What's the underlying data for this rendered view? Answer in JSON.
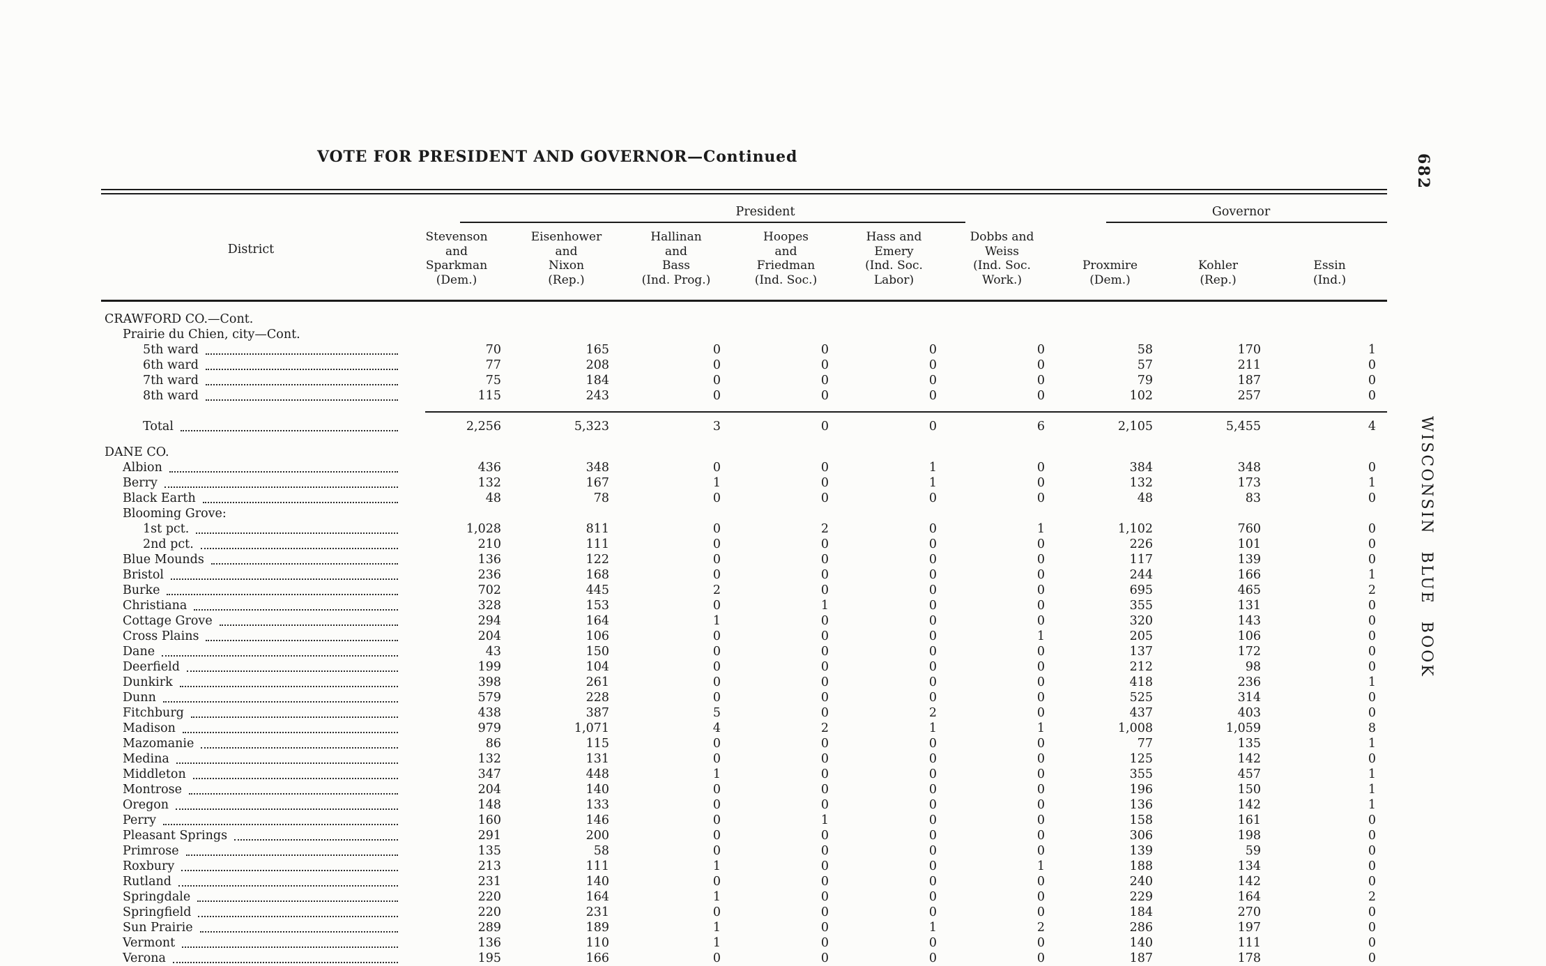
{
  "page": {
    "title": "VOTE FOR PRESIDENT AND GOVERNOR—Continued",
    "folio": "682",
    "side_text": "WISCONSIN BLUE BOOK"
  },
  "table": {
    "district_header": "District",
    "groups": [
      {
        "label": "President"
      },
      {
        "label": "Governor"
      }
    ],
    "columns": [
      [
        "Stevenson",
        "and",
        "Sparkman",
        "(Dem.)"
      ],
      [
        "Eisenhower",
        "and",
        "Nixon",
        "(Rep.)"
      ],
      [
        "Hallinan",
        "and",
        "Bass",
        "(Ind. Prog.)"
      ],
      [
        "Hoopes",
        "and",
        "Friedman",
        "(Ind. Soc.)"
      ],
      [
        "Hass and",
        "Emery",
        "(Ind. Soc.",
        "Labor)"
      ],
      [
        "Dobbs and",
        "Weiss",
        "(Ind. Soc.",
        "Work.)"
      ],
      [
        "Proxmire",
        "(Dem.)"
      ],
      [
        "Kohler",
        "(Rep.)"
      ],
      [
        "Essin",
        "(Ind.)"
      ]
    ],
    "rows": [
      {
        "label": "CRAWFORD CO.—Cont.",
        "indent": 0,
        "leader": false,
        "values": null
      },
      {
        "label": "Prairie du Chien, city—Cont.",
        "indent": 1,
        "leader": false,
        "values": null
      },
      {
        "label": "5th ward",
        "indent": 2,
        "leader": true,
        "values": [
          "70",
          "165",
          "0",
          "0",
          "0",
          "0",
          "58",
          "170",
          "1"
        ]
      },
      {
        "label": "6th ward",
        "indent": 2,
        "leader": true,
        "values": [
          "77",
          "208",
          "0",
          "0",
          "0",
          "0",
          "57",
          "211",
          "0"
        ]
      },
      {
        "label": "7th ward",
        "indent": 2,
        "leader": true,
        "values": [
          "75",
          "184",
          "0",
          "0",
          "0",
          "0",
          "79",
          "187",
          "0"
        ]
      },
      {
        "label": "8th ward",
        "indent": 2,
        "leader": true,
        "values": [
          "115",
          "243",
          "0",
          "0",
          "0",
          "0",
          "102",
          "257",
          "0"
        ]
      },
      {
        "type": "rule"
      },
      {
        "label": "Total",
        "indent": 2,
        "leader": true,
        "values": [
          "2,256",
          "5,323",
          "3",
          "0",
          "0",
          "6",
          "2,105",
          "5,455",
          "4"
        ]
      },
      {
        "label": "DANE CO.",
        "indent": 0,
        "leader": false,
        "values": null,
        "gap": true
      },
      {
        "label": "Albion",
        "indent": 1,
        "leader": true,
        "values": [
          "436",
          "348",
          "0",
          "0",
          "1",
          "0",
          "384",
          "348",
          "0"
        ]
      },
      {
        "label": "Berry",
        "indent": 1,
        "leader": true,
        "values": [
          "132",
          "167",
          "1",
          "0",
          "1",
          "0",
          "132",
          "173",
          "1"
        ]
      },
      {
        "label": "Black Earth",
        "indent": 1,
        "leader": true,
        "values": [
          "48",
          "78",
          "0",
          "0",
          "0",
          "0",
          "48",
          "83",
          "0"
        ]
      },
      {
        "label": "Blooming Grove:",
        "indent": 1,
        "leader": false,
        "values": null
      },
      {
        "label": "1st pct.",
        "indent": 2,
        "leader": true,
        "values": [
          "1,028",
          "811",
          "0",
          "2",
          "0",
          "1",
          "1,102",
          "760",
          "0"
        ]
      },
      {
        "label": "2nd pct.",
        "indent": 2,
        "leader": true,
        "values": [
          "210",
          "111",
          "0",
          "0",
          "0",
          "0",
          "226",
          "101",
          "0"
        ]
      },
      {
        "label": "Blue Mounds",
        "indent": 1,
        "leader": true,
        "values": [
          "136",
          "122",
          "0",
          "0",
          "0",
          "0",
          "117",
          "139",
          "0"
        ]
      },
      {
        "label": "Bristol",
        "indent": 1,
        "leader": true,
        "values": [
          "236",
          "168",
          "0",
          "0",
          "0",
          "0",
          "244",
          "166",
          "1"
        ]
      },
      {
        "label": "Burke",
        "indent": 1,
        "leader": true,
        "values": [
          "702",
          "445",
          "2",
          "0",
          "0",
          "0",
          "695",
          "465",
          "2"
        ]
      },
      {
        "label": "Christiana",
        "indent": 1,
        "leader": true,
        "values": [
          "328",
          "153",
          "0",
          "1",
          "0",
          "0",
          "355",
          "131",
          "0"
        ]
      },
      {
        "label": "Cottage Grove",
        "indent": 1,
        "leader": true,
        "values": [
          "294",
          "164",
          "1",
          "0",
          "0",
          "0",
          "320",
          "143",
          "0"
        ]
      },
      {
        "label": "Cross Plains",
        "indent": 1,
        "leader": true,
        "values": [
          "204",
          "106",
          "0",
          "0",
          "0",
          "1",
          "205",
          "106",
          "0"
        ]
      },
      {
        "label": "Dane",
        "indent": 1,
        "leader": true,
        "values": [
          "43",
          "150",
          "0",
          "0",
          "0",
          "0",
          "137",
          "172",
          "0"
        ]
      },
      {
        "label": "Deerfield",
        "indent": 1,
        "leader": true,
        "values": [
          "199",
          "104",
          "0",
          "0",
          "0",
          "0",
          "212",
          "98",
          "0"
        ]
      },
      {
        "label": "Dunkirk",
        "indent": 1,
        "leader": true,
        "values": [
          "398",
          "261",
          "0",
          "0",
          "0",
          "0",
          "418",
          "236",
          "1"
        ]
      },
      {
        "label": "Dunn",
        "indent": 1,
        "leader": true,
        "values": [
          "579",
          "228",
          "0",
          "0",
          "0",
          "0",
          "525",
          "314",
          "0"
        ]
      },
      {
        "label": "Fitchburg",
        "indent": 1,
        "leader": true,
        "values": [
          "438",
          "387",
          "5",
          "0",
          "2",
          "0",
          "437",
          "403",
          "0"
        ]
      },
      {
        "label": "Madison",
        "indent": 1,
        "leader": true,
        "values": [
          "979",
          "1,071",
          "4",
          "2",
          "1",
          "1",
          "1,008",
          "1,059",
          "8"
        ]
      },
      {
        "label": "Mazomanie",
        "indent": 1,
        "leader": true,
        "values": [
          "86",
          "115",
          "0",
          "0",
          "0",
          "0",
          "77",
          "135",
          "1"
        ]
      },
      {
        "label": "Medina",
        "indent": 1,
        "leader": true,
        "values": [
          "132",
          "131",
          "0",
          "0",
          "0",
          "0",
          "125",
          "142",
          "0"
        ]
      },
      {
        "label": "Middleton",
        "indent": 1,
        "leader": true,
        "values": [
          "347",
          "448",
          "1",
          "0",
          "0",
          "0",
          "355",
          "457",
          "1"
        ]
      },
      {
        "label": "Montrose",
        "indent": 1,
        "leader": true,
        "values": [
          "204",
          "140",
          "0",
          "0",
          "0",
          "0",
          "196",
          "150",
          "1"
        ]
      },
      {
        "label": "Oregon",
        "indent": 1,
        "leader": true,
        "values": [
          "148",
          "133",
          "0",
          "0",
          "0",
          "0",
          "136",
          "142",
          "1"
        ]
      },
      {
        "label": "Perry",
        "indent": 1,
        "leader": true,
        "values": [
          "160",
          "146",
          "0",
          "1",
          "0",
          "0",
          "158",
          "161",
          "0"
        ]
      },
      {
        "label": "Pleasant Springs",
        "indent": 1,
        "leader": true,
        "values": [
          "291",
          "200",
          "0",
          "0",
          "0",
          "0",
          "306",
          "198",
          "0"
        ]
      },
      {
        "label": "Primrose",
        "indent": 1,
        "leader": true,
        "values": [
          "135",
          "58",
          "0",
          "0",
          "0",
          "0",
          "139",
          "59",
          "0"
        ]
      },
      {
        "label": "Roxbury",
        "indent": 1,
        "leader": true,
        "values": [
          "213",
          "111",
          "1",
          "0",
          "0",
          "1",
          "188",
          "134",
          "0"
        ]
      },
      {
        "label": "Rutland",
        "indent": 1,
        "leader": true,
        "values": [
          "231",
          "140",
          "0",
          "0",
          "0",
          "0",
          "240",
          "142",
          "0"
        ]
      },
      {
        "label": "Springdale",
        "indent": 1,
        "leader": true,
        "values": [
          "220",
          "164",
          "1",
          "0",
          "0",
          "0",
          "229",
          "164",
          "2"
        ]
      },
      {
        "label": "Springfield",
        "indent": 1,
        "leader": true,
        "values": [
          "220",
          "231",
          "0",
          "0",
          "0",
          "0",
          "184",
          "270",
          "0"
        ]
      },
      {
        "label": "Sun Prairie",
        "indent": 1,
        "leader": true,
        "values": [
          "289",
          "189",
          "1",
          "0",
          "1",
          "2",
          "286",
          "197",
          "0"
        ]
      },
      {
        "label": "Vermont",
        "indent": 1,
        "leader": true,
        "values": [
          "136",
          "110",
          "1",
          "0",
          "0",
          "0",
          "140",
          "111",
          "0"
        ]
      },
      {
        "label": "Verona",
        "indent": 1,
        "leader": true,
        "values": [
          "195",
          "166",
          "0",
          "0",
          "0",
          "0",
          "187",
          "178",
          "0"
        ]
      }
    ]
  }
}
